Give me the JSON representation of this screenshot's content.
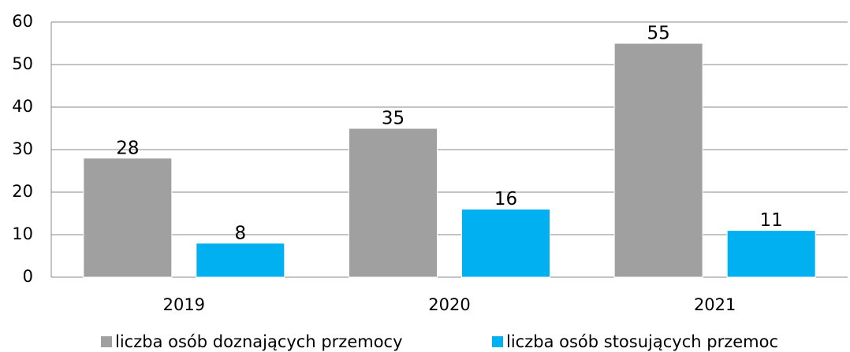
{
  "chart_data": {
    "type": "bar",
    "categories": [
      "2019",
      "2020",
      "2021"
    ],
    "series": [
      {
        "name": "liczba osób doznających przemocy",
        "color": "#a0a0a0",
        "values": [
          28,
          35,
          55
        ]
      },
      {
        "name": "liczba osób stosujących przemoc",
        "color": "#00b0f0",
        "values": [
          8,
          16,
          11
        ]
      }
    ],
    "ylim": [
      0,
      60
    ],
    "yticks": [
      0,
      10,
      20,
      30,
      40,
      50,
      60
    ],
    "grid": true,
    "legend": "bottom"
  }
}
